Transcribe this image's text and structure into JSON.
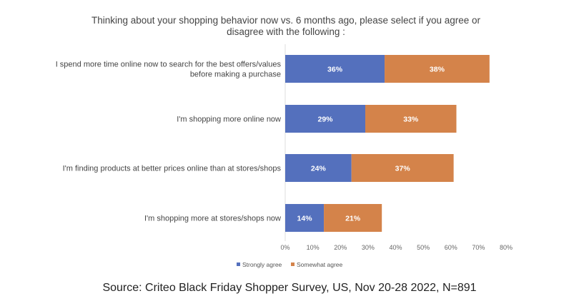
{
  "chart_data": {
    "type": "bar",
    "orientation": "horizontal",
    "stacked": true,
    "title": "Thinking about your shopping behavior now vs. 6 months ago, please select if you agree or disagree with the following :",
    "title_lines": [
      "Thinking about your shopping behavior now vs. 6 months ago, please select if you agree or",
      "disagree with the following :"
    ],
    "categories": [
      [
        "I spend more time online now to search for the best offers/values",
        "before making a purchase"
      ],
      [
        "I'm shopping more online now"
      ],
      [
        "I'm finding products at better prices online than at stores/shops"
      ],
      [
        "I'm shopping more at stores/shops now"
      ]
    ],
    "series": [
      {
        "name": "Strongly agree",
        "color": "#5470BD",
        "values": [
          36,
          29,
          24,
          14
        ],
        "labels": [
          "36%",
          "29%",
          "24%",
          "14%"
        ]
      },
      {
        "name": "Somewhat agree",
        "color": "#D4834A",
        "values": [
          38,
          33,
          37,
          21
        ],
        "labels": [
          "38%",
          "33%",
          "37%",
          "21%"
        ]
      }
    ],
    "xlim": [
      0,
      80
    ],
    "xticks": [
      "0%",
      "10%",
      "20%",
      "30%",
      "40%",
      "50%",
      "60%",
      "70%",
      "80%"
    ],
    "grid": false,
    "legend": "bottom"
  },
  "source": "Source: Criteo Black Friday Shopper Survey, US, Nov 20-28 2022, N=891"
}
